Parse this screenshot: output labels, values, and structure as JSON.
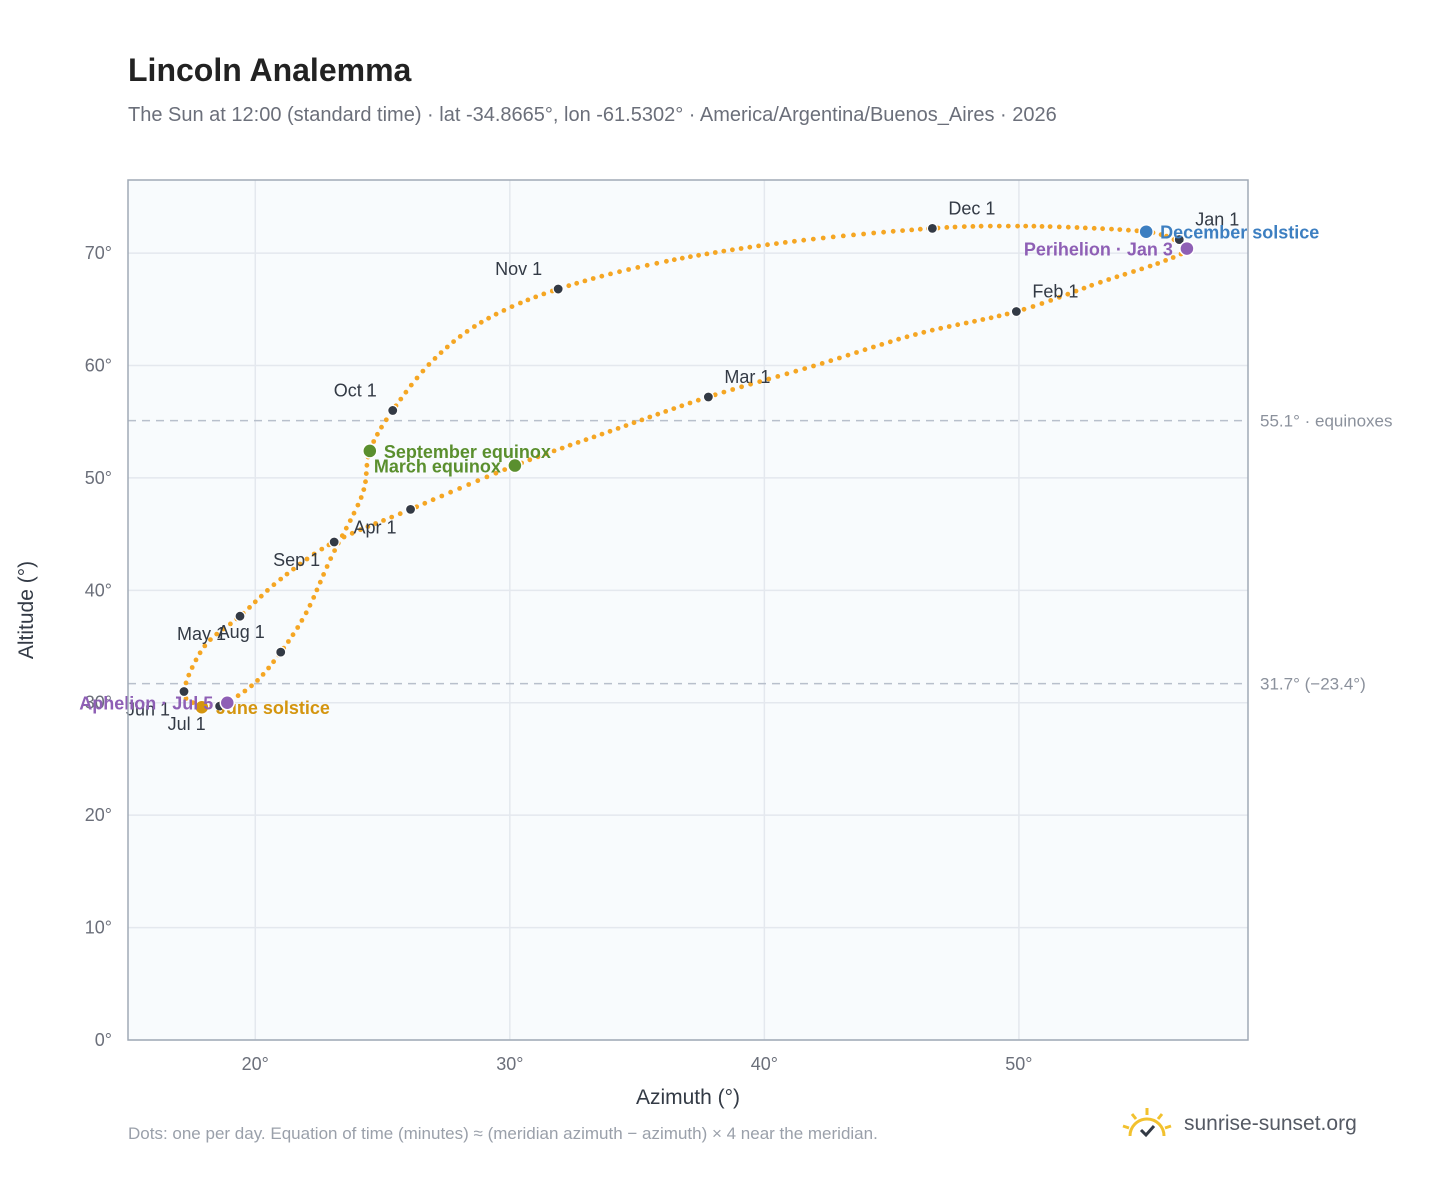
{
  "header": {
    "title": "Lincoln Analemma",
    "subtitle": "The Sun at 12:00 (standard time) · lat -34.8665°, lon -61.5302° · America/Argentina/Buenos_Aires · 2026"
  },
  "footer": {
    "note": "Dots: one per day. Equation of time (minutes) ≈ (meridian azimuth − azimuth) × 4 near the meridian.",
    "brand": "sunrise-sunset.org"
  },
  "colors": {
    "curve": "#f5a623",
    "month_marker": "#333a45",
    "equinox": "#5a8f2e",
    "june_solstice": "#d4950f",
    "december_solstice": "#3d7fc1",
    "apsis": "#8e5fb5",
    "reference_line": "#b8c0cc",
    "grid": "#e4e8ee",
    "plot_bg": "#f8fbfd",
    "frame": "#a0aab6"
  },
  "chart_data": {
    "type": "scatter",
    "xlabel": "Azimuth (°)",
    "ylabel": "Altitude (°)",
    "xlim": [
      15,
      59
    ],
    "ylim": [
      0,
      76.5
    ],
    "x_ticks": [
      {
        "value": 20,
        "label": "20°"
      },
      {
        "value": 30,
        "label": "30°"
      },
      {
        "value": 40,
        "label": "40°"
      },
      {
        "value": 50,
        "label": "50°"
      }
    ],
    "y_ticks": [
      {
        "value": 0,
        "label": "0°"
      },
      {
        "value": 10,
        "label": "10°"
      },
      {
        "value": 20,
        "label": "20°"
      },
      {
        "value": 30,
        "label": "30°"
      },
      {
        "value": 40,
        "label": "40°"
      },
      {
        "value": 50,
        "label": "50°"
      },
      {
        "value": 60,
        "label": "60°"
      },
      {
        "value": 70,
        "label": "70°"
      }
    ],
    "grid": true,
    "reference_lines": [
      {
        "y": 55.1,
        "label": "55.1° · equinoxes"
      },
      {
        "y": 31.7,
        "label": "31.7° (−23.4°)"
      }
    ],
    "series": [
      {
        "points": [
          [
            55.8,
            71.5
          ],
          [
            56.6,
            70.4
          ],
          [
            55.6,
            69.2
          ],
          [
            53.2,
            67.4
          ],
          [
            49.9,
            64.8
          ],
          [
            46.0,
            62.8
          ],
          [
            42.0,
            60.0
          ],
          [
            37.8,
            57.2
          ],
          [
            34.0,
            54.2
          ],
          [
            30.2,
            51.1
          ],
          [
            26.1,
            47.2
          ],
          [
            23.1,
            44.3
          ],
          [
            21.0,
            41.0
          ],
          [
            19.4,
            37.7
          ],
          [
            18.0,
            35.0
          ],
          [
            17.2,
            31.0
          ],
          [
            17.8,
            29.8
          ],
          [
            18.6,
            29.7
          ],
          [
            18.9,
            30.0
          ],
          [
            20.0,
            31.8
          ],
          [
            21.0,
            34.5
          ],
          [
            22.0,
            38.0
          ],
          [
            23.0,
            43.0
          ],
          [
            24.2,
            48.5
          ],
          [
            24.5,
            52.4
          ],
          [
            25.4,
            56.0
          ],
          [
            27.0,
            60.5
          ],
          [
            29.0,
            64.0
          ],
          [
            31.9,
            66.8
          ],
          [
            36.0,
            69.2
          ],
          [
            41.0,
            71.0
          ],
          [
            46.6,
            72.2
          ],
          [
            50.0,
            72.4
          ],
          [
            53.0,
            72.2
          ],
          [
            55.0,
            71.9
          ],
          [
            55.8,
            71.5
          ]
        ]
      }
    ],
    "month_markers": [
      {
        "label": "Jan 1",
        "x": 56.3,
        "y": 71.2,
        "label_pos": "upper-right"
      },
      {
        "label": "Feb 1",
        "x": 49.9,
        "y": 64.8,
        "label_pos": "upper-right"
      },
      {
        "label": "Mar 1",
        "x": 37.8,
        "y": 57.2,
        "label_pos": "upper-right"
      },
      {
        "label": "Apr 1",
        "x": 26.1,
        "y": 47.2,
        "label_pos": "lower-left"
      },
      {
        "label": "May 1",
        "x": 19.4,
        "y": 37.7,
        "label_pos": "lower-left"
      },
      {
        "label": "Jun 1",
        "x": 17.2,
        "y": 31.0,
        "label_pos": "lower-left"
      },
      {
        "label": "Jul 1",
        "x": 18.6,
        "y": 29.7,
        "label_pos": "lower-left"
      },
      {
        "label": "Aug 1",
        "x": 21.0,
        "y": 34.5,
        "label_pos": "upper-left"
      },
      {
        "label": "Sep 1",
        "x": 23.1,
        "y": 44.3,
        "label_pos": "lower-left"
      },
      {
        "label": "Oct 1",
        "x": 25.4,
        "y": 56.0,
        "label_pos": "upper-left"
      },
      {
        "label": "Nov 1",
        "x": 31.9,
        "y": 66.8,
        "label_pos": "upper-left"
      },
      {
        "label": "Dec 1",
        "x": 46.6,
        "y": 72.2,
        "label_pos": "upper-right"
      }
    ],
    "events": [
      {
        "label": "September equinox",
        "x": 24.5,
        "y": 52.4,
        "kind": "equinox",
        "label_side": "right"
      },
      {
        "label": "March equinox",
        "x": 30.2,
        "y": 51.1,
        "kind": "equinox",
        "label_side": "left"
      },
      {
        "label": "June solstice",
        "x": 17.9,
        "y": 29.6,
        "kind": "june_solstice",
        "label_side": "right"
      },
      {
        "label": "December solstice",
        "x": 55.0,
        "y": 71.9,
        "kind": "december_solstice",
        "label_side": "right"
      },
      {
        "label": "Perihelion · Jan 3",
        "x": 56.6,
        "y": 70.4,
        "kind": "apsis",
        "label_side": "left"
      },
      {
        "label": "Aphelion · Jul 5",
        "x": 18.9,
        "y": 30.0,
        "kind": "apsis",
        "label_side": "left"
      }
    ]
  }
}
